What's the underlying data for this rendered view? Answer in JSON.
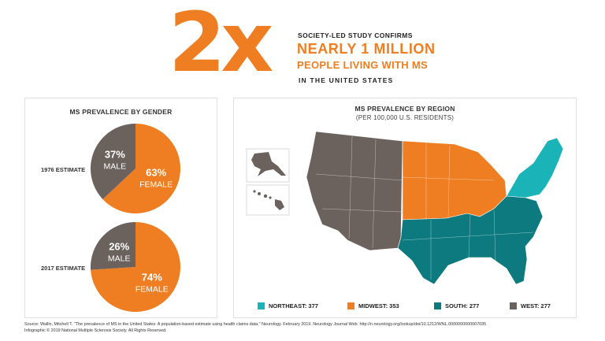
{
  "header": {
    "big_text": "2x",
    "kicker": "SOCIETY-LED STUDY CONFIRMS",
    "headline_line1": "NEARLY 1 MILLION",
    "headline_line2": "PEOPLE LIVING WITH MS",
    "sub": "IN THE UNITED STATES"
  },
  "colors": {
    "orange": "#ef7e22",
    "taupe": "#6b625e",
    "teal_light": "#1ab3b8",
    "teal_dark": "#0d7a80",
    "midwest": "#ef7e22",
    "west": "#6b625e"
  },
  "chart_data": [
    {
      "type": "pie",
      "title": "MS PREVALENCE BY GENDER",
      "charts": [
        {
          "label": "1976 ESTIMATE",
          "slices": [
            {
              "name": "MALE",
              "value": 37,
              "display": "37%"
            },
            {
              "name": "FEMALE",
              "value": 63,
              "display": "63%"
            }
          ]
        },
        {
          "label": "2017 ESTIMATE",
          "slices": [
            {
              "name": "MALE",
              "value": 26,
              "display": "26%"
            },
            {
              "name": "FEMALE",
              "value": 74,
              "display": "74%"
            }
          ]
        }
      ]
    },
    {
      "type": "map",
      "title": "MS PREVALENCE BY REGION",
      "subtitle": "(PER 100,000 U.S. RESIDENTS)",
      "regions": [
        {
          "name": "NORTHEAST",
          "value": 377,
          "display": "NORTHEAST: 377",
          "color": "#1ab3b8"
        },
        {
          "name": "MIDWEST",
          "value": 353,
          "display": "MIDWEST: 353",
          "color": "#ef7e22"
        },
        {
          "name": "SOUTH",
          "value": 277,
          "display": "SOUTH: 277",
          "color": "#0d7a80"
        },
        {
          "name": "WEST",
          "value": 277,
          "display": "WEST: 277",
          "color": "#6b625e"
        }
      ]
    }
  ],
  "footer": {
    "source": "Source: Wallin, Mitchell T. \"The prevalence of MS in the United States: A population-based estimate using health claims data.\" Neurology. February 2019. Neurology Journal Web. http://n.neurology.org/lookup/doi/10.1212/WNL.0000000000007035",
    "copyright": "Infographic © 2019 National Multiple Sclerosis Society. All Rights Reserved."
  }
}
